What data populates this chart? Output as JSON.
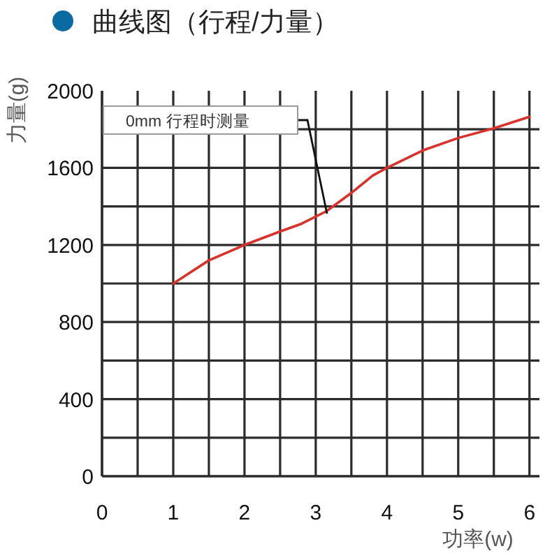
{
  "chart_data": {
    "type": "line",
    "title": "曲线图（行程/力量）",
    "xlabel": "功率(w)",
    "ylabel": "力量(g)",
    "annotations": [
      "0mm 行程时测量"
    ],
    "x": [
      1,
      1.5,
      2,
      2.5,
      2.8,
      3.15,
      3.5,
      3.8,
      4,
      4.5,
      5,
      5.5,
      6
    ],
    "series": [
      {
        "color": "#d8322b",
        "values": [
          1000,
          1120,
          1200,
          1270,
          1310,
          1375,
          1470,
          1560,
          1600,
          1690,
          1755,
          1805,
          1865
        ]
      }
    ],
    "xlim": [
      0,
      6.14
    ],
    "xticks": [
      0,
      {
        "value": 0.5,
        "label": null
      },
      1,
      {
        "value": 1.5,
        "label": null
      },
      2,
      {
        "value": 2.5,
        "label": null
      },
      3,
      {
        "value": 3.5,
        "label": null
      },
      4,
      {
        "value": 4.5,
        "label": null
      },
      5,
      {
        "value": 5.5,
        "label": null
      },
      6
    ],
    "ylim": [
      0,
      2000
    ],
    "yticks": [
      0,
      {
        "value": 200,
        "label": null
      },
      400,
      {
        "value": 600,
        "label": null
      },
      800,
      {
        "value": 1000,
        "label": null
      },
      1200,
      {
        "value": 1400,
        "label": null
      },
      1600,
      {
        "value": 1800,
        "label": null
      },
      2000
    ],
    "grid": true,
    "line_style": "solid"
  }
}
